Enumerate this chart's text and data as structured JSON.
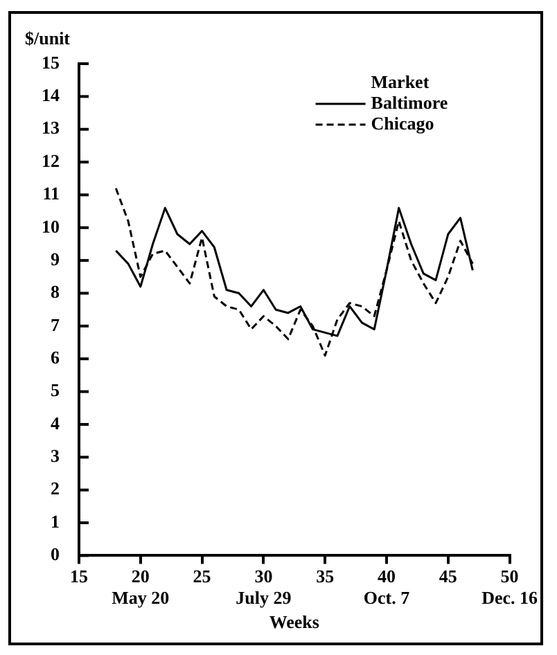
{
  "chart_data": {
    "type": "line",
    "ylabel": "$/unit",
    "xlabel": "Weeks",
    "legend_title": "Market",
    "legend": "top right",
    "grid": false,
    "marker": "none",
    "x": [
      18,
      19,
      20,
      21,
      22,
      23,
      24,
      25,
      26,
      27,
      28,
      29,
      30,
      31,
      32,
      33,
      34,
      35,
      36,
      37,
      38,
      39,
      40,
      41,
      42,
      43,
      44,
      45,
      46,
      47
    ],
    "series": [
      {
        "name": "Baltimore",
        "color": "#000000",
        "line_style": "solid",
        "values": [
          9.3,
          8.9,
          8.2,
          9.5,
          10.6,
          9.8,
          9.5,
          9.9,
          9.4,
          8.1,
          8.0,
          7.6,
          8.1,
          7.5,
          7.4,
          7.6,
          6.9,
          6.8,
          6.7,
          7.6,
          7.1,
          6.9,
          8.7,
          10.6,
          9.5,
          8.6,
          8.4,
          9.8,
          10.3,
          8.7
        ]
      },
      {
        "name": "Chicago",
        "color": "#000000",
        "line_style": "dashed",
        "values": [
          11.2,
          10.2,
          8.5,
          9.2,
          9.3,
          8.8,
          8.3,
          9.7,
          7.9,
          7.6,
          7.5,
          6.9,
          7.3,
          7.0,
          6.6,
          7.5,
          7.0,
          6.1,
          7.2,
          7.7,
          7.6,
          7.3,
          8.7,
          10.2,
          9.0,
          8.3,
          7.7,
          8.5,
          9.6,
          8.9
        ]
      }
    ],
    "xlim": [
      15,
      50
    ],
    "xticks": [
      15,
      {
        "value": 20,
        "label": "20\nMay 20"
      },
      25,
      {
        "value": 30,
        "label": "30\nJuly 29"
      },
      35,
      {
        "value": 40,
        "label": "40\nOct. 7"
      },
      45,
      {
        "value": 50,
        "label": "50\nDec. 16"
      }
    ],
    "ylim": [
      0,
      15
    ],
    "yticks": [
      0,
      1,
      2,
      3,
      4,
      5,
      6,
      7,
      8,
      9,
      10,
      11,
      12,
      13,
      14,
      15
    ]
  }
}
